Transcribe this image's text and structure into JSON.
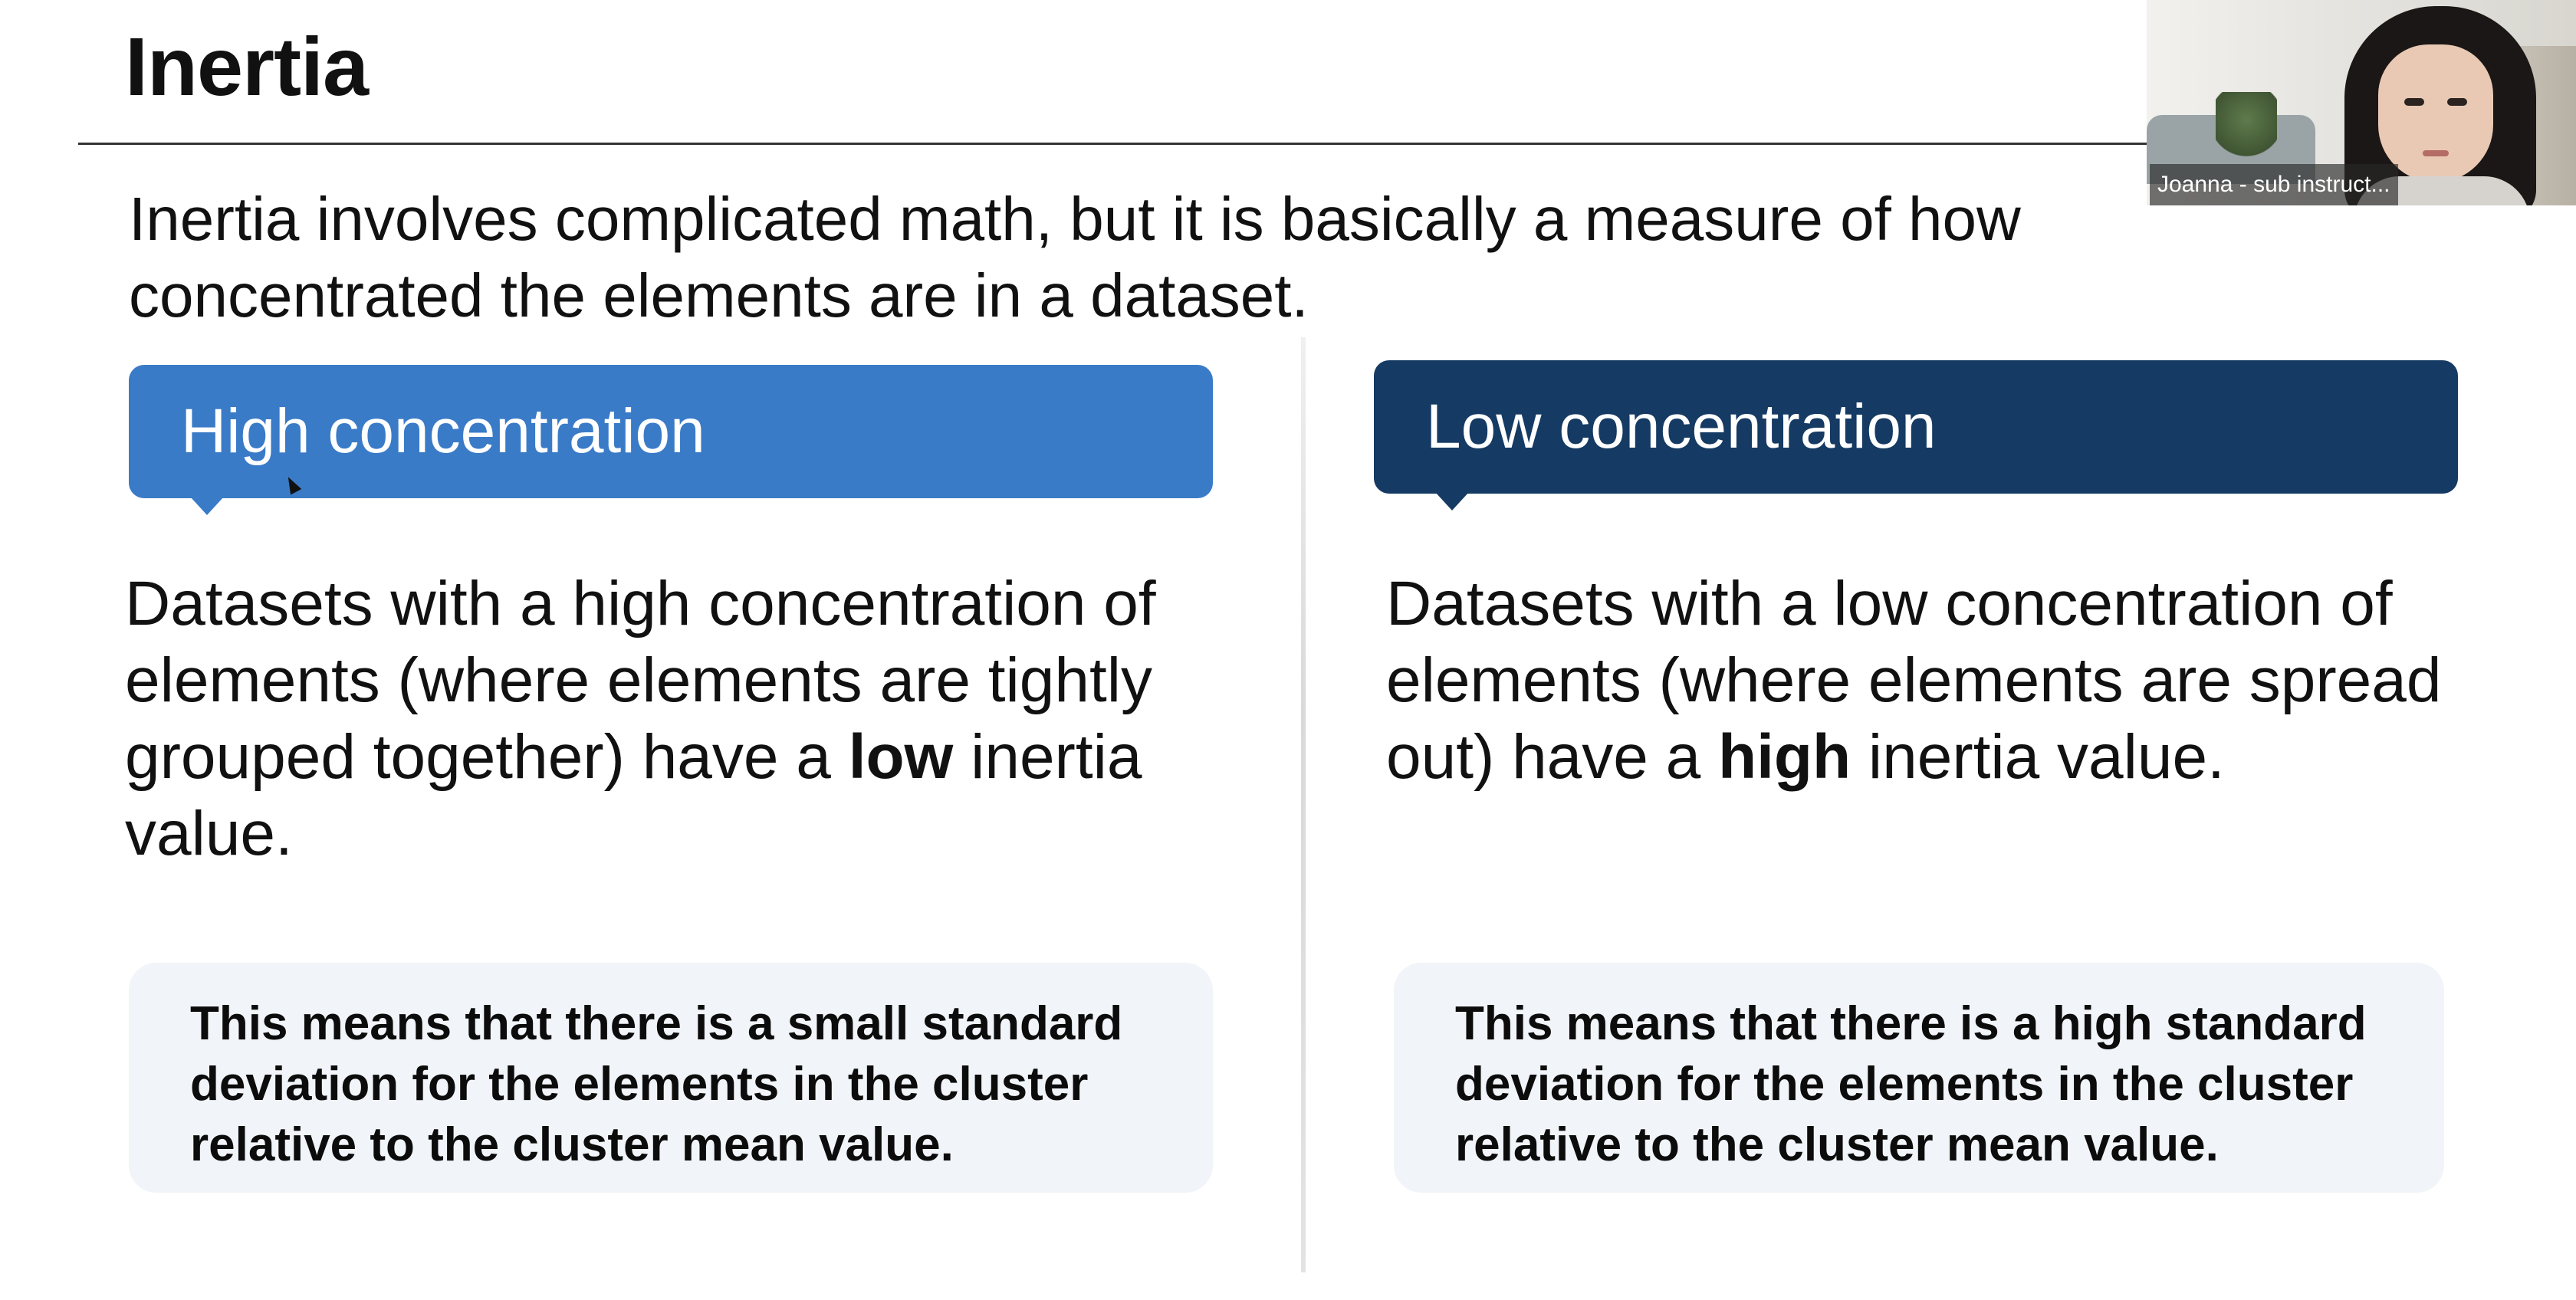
{
  "slide": {
    "title": "Inertia",
    "intro": "Inertia involves complicated math, but it is basically a measure of how concentrated the elements are in a dataset.",
    "left": {
      "header": "High concentration",
      "body_pre": "Datasets with a high concentration of elements (where elements are tightly grouped together) have a ",
      "body_bold": "low",
      "body_post": " inertia value.",
      "note": "This means that there is a small standard deviation for the elements in the cluster relative to the cluster mean value.",
      "header_color": "#3a7bc8"
    },
    "right": {
      "header": "Low concentration",
      "body_pre": "Datasets with a low concentration of elements (where elements are spread out) have a ",
      "body_bold": "high",
      "body_post": " inertia value.",
      "note": "This means that there is a high standard deviation for the elements in the cluster relative to the cluster mean value.",
      "header_color": "#153a63"
    }
  },
  "webcam": {
    "participant_label": "Joanna - sub instruct..."
  }
}
